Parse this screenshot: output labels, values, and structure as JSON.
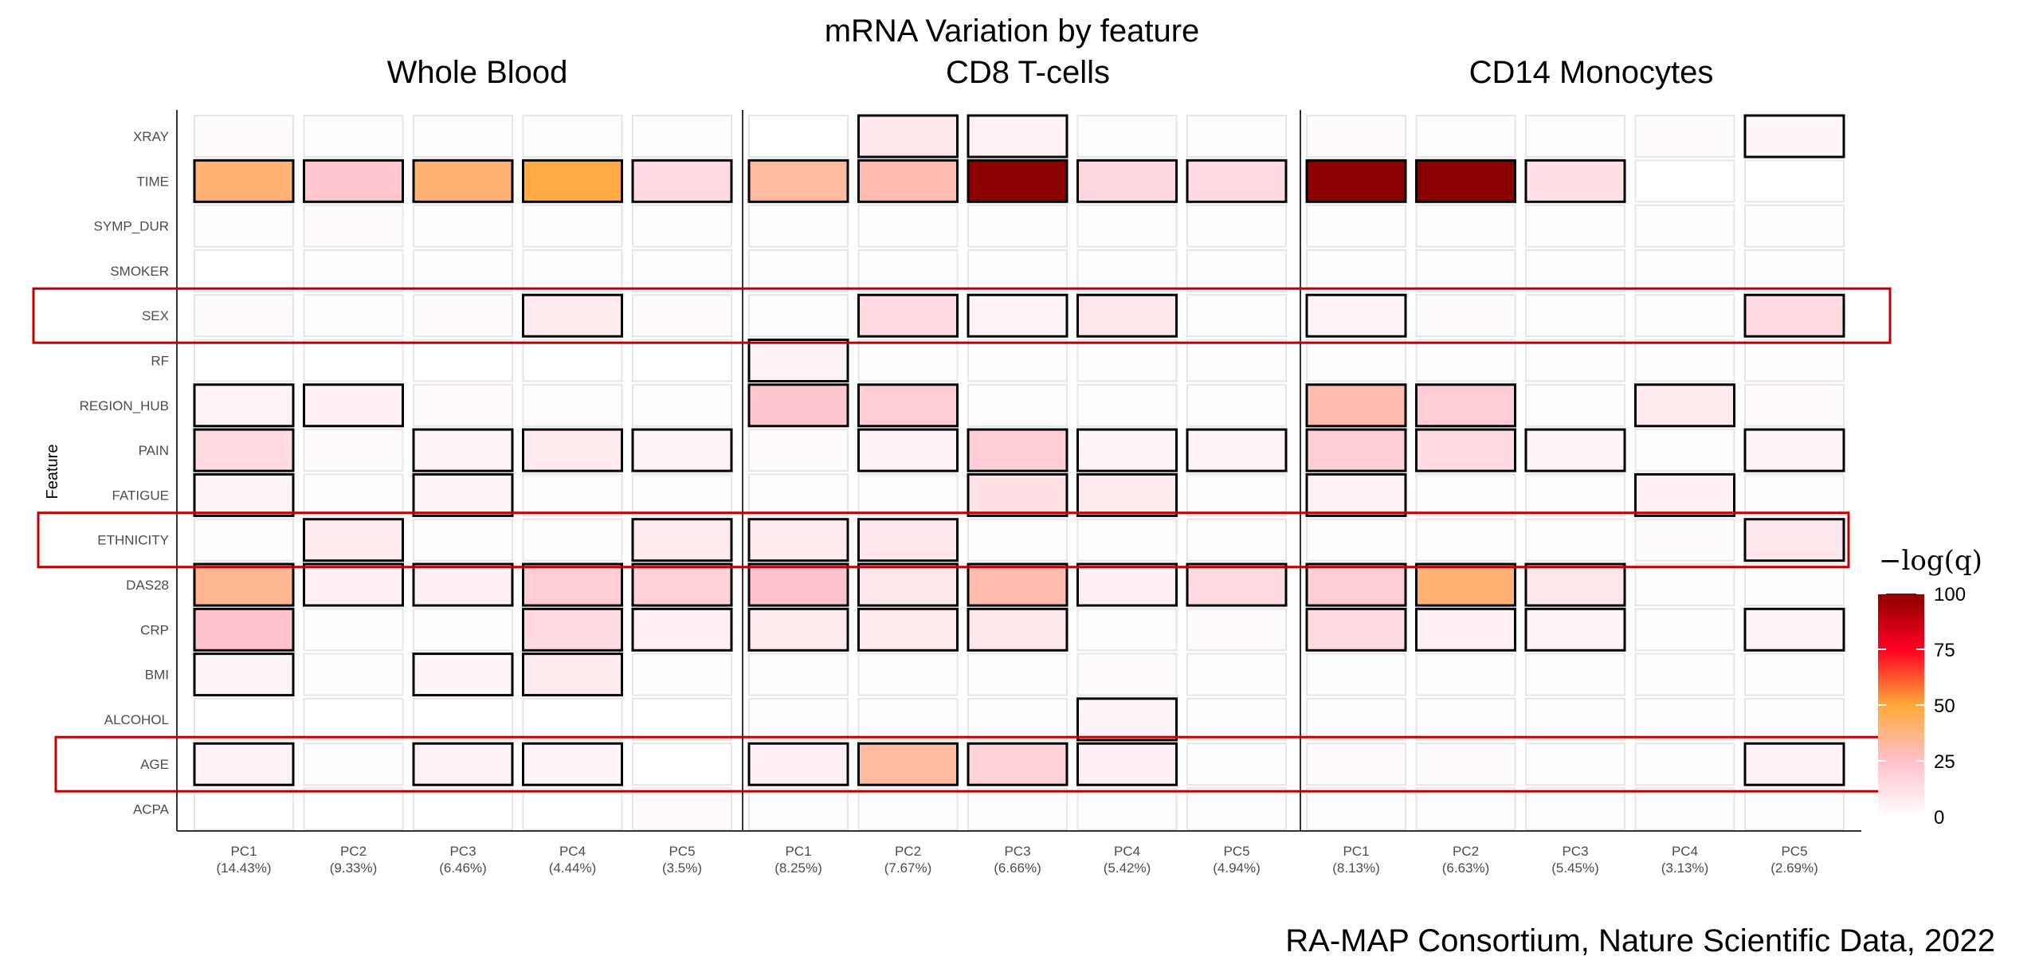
{
  "chart_data": {
    "type": "heatmap",
    "title": "mRNA Variation by feature",
    "ylabel": "Feature",
    "features": [
      "XRAY",
      "TIME",
      "SYMP_DUR",
      "SMOKER",
      "SEX",
      "RF",
      "REGION_HUB",
      "PAIN",
      "FATIGUE",
      "ETHNICITY",
      "DAS28",
      "CRP",
      "BMI",
      "ALCOHOL",
      "AGE",
      "ACPA"
    ],
    "highlighted_features": [
      "SEX",
      "ETHNICITY",
      "AGE"
    ],
    "panels": [
      {
        "name": "Whole Blood",
        "components": [
          {
            "label": "PC1",
            "variance": "(14.43%)"
          },
          {
            "label": "PC2",
            "variance": "(9.33%)"
          },
          {
            "label": "PC3",
            "variance": "(6.46%)"
          },
          {
            "label": "PC4",
            "variance": "(4.44%)"
          },
          {
            "label": "PC5",
            "variance": "(3.5%)"
          }
        ],
        "values": [
          [
            2,
            1,
            1,
            1,
            1
          ],
          [
            40,
            22,
            40,
            48,
            14
          ],
          [
            1,
            2,
            1,
            1,
            1
          ],
          [
            0,
            1,
            1,
            1,
            1
          ],
          [
            2,
            1,
            2,
            8,
            2
          ],
          [
            0,
            0,
            0,
            0,
            0
          ],
          [
            4,
            6,
            2,
            1,
            1
          ],
          [
            14,
            2,
            4,
            8,
            4
          ],
          [
            4,
            1,
            4,
            1,
            1
          ],
          [
            1,
            8,
            1,
            1,
            8
          ],
          [
            35,
            6,
            6,
            20,
            18
          ],
          [
            24,
            1,
            1,
            14,
            6
          ],
          [
            4,
            1,
            3,
            8,
            1
          ],
          [
            0,
            0,
            0,
            0,
            0
          ],
          [
            5,
            1,
            5,
            4,
            0
          ],
          [
            0,
            0,
            0,
            0,
            2
          ]
        ],
        "significant": [
          [
            0,
            0,
            0,
            0,
            0
          ],
          [
            1,
            1,
            1,
            1,
            1
          ],
          [
            0,
            0,
            0,
            0,
            0
          ],
          [
            0,
            0,
            0,
            0,
            0
          ],
          [
            0,
            0,
            0,
            1,
            0
          ],
          [
            0,
            0,
            0,
            0,
            0
          ],
          [
            1,
            1,
            0,
            0,
            0
          ],
          [
            1,
            0,
            1,
            1,
            1
          ],
          [
            1,
            0,
            1,
            0,
            0
          ],
          [
            0,
            1,
            0,
            0,
            1
          ],
          [
            1,
            1,
            1,
            1,
            1
          ],
          [
            1,
            0,
            0,
            1,
            1
          ],
          [
            1,
            0,
            1,
            1,
            0
          ],
          [
            0,
            0,
            0,
            0,
            0
          ],
          [
            1,
            0,
            1,
            1,
            0
          ],
          [
            0,
            0,
            0,
            0,
            0
          ]
        ]
      },
      {
        "name": "CD8 T-cells",
        "components": [
          {
            "label": "PC1",
            "variance": "(8.25%)"
          },
          {
            "label": "PC2",
            "variance": "(7.67%)"
          },
          {
            "label": "PC3",
            "variance": "(6.66%)"
          },
          {
            "label": "PC4",
            "variance": "(5.42%)"
          },
          {
            "label": "PC5",
            "variance": "(4.94%)"
          }
        ],
        "values": [
          [
            0,
            10,
            5,
            1,
            1
          ],
          [
            32,
            30,
            100,
            16,
            14
          ],
          [
            1,
            1,
            1,
            1,
            1
          ],
          [
            1,
            1,
            1,
            1,
            1
          ],
          [
            1,
            14,
            4,
            10,
            1
          ],
          [
            5,
            1,
            1,
            1,
            1
          ],
          [
            22,
            20,
            1,
            1,
            1
          ],
          [
            2,
            5,
            20,
            4,
            4
          ],
          [
            1,
            1,
            12,
            8,
            1
          ],
          [
            8,
            10,
            1,
            1,
            1
          ],
          [
            24,
            10,
            30,
            6,
            14
          ],
          [
            8,
            8,
            10,
            1,
            2
          ],
          [
            1,
            1,
            1,
            2,
            1
          ],
          [
            1,
            1,
            1,
            4,
            1
          ],
          [
            6,
            32,
            18,
            6,
            1
          ],
          [
            1,
            1,
            1,
            1,
            1
          ]
        ],
        "significant": [
          [
            0,
            1,
            1,
            0,
            0
          ],
          [
            1,
            1,
            1,
            1,
            1
          ],
          [
            0,
            0,
            0,
            0,
            0
          ],
          [
            0,
            0,
            0,
            0,
            0
          ],
          [
            0,
            1,
            1,
            1,
            0
          ],
          [
            1,
            0,
            0,
            0,
            0
          ],
          [
            1,
            1,
            0,
            0,
            0
          ],
          [
            0,
            1,
            1,
            1,
            1
          ],
          [
            0,
            0,
            1,
            1,
            0
          ],
          [
            1,
            1,
            0,
            0,
            0
          ],
          [
            1,
            1,
            1,
            1,
            1
          ],
          [
            1,
            1,
            1,
            0,
            0
          ],
          [
            0,
            0,
            0,
            0,
            0
          ],
          [
            0,
            0,
            0,
            1,
            0
          ],
          [
            1,
            1,
            1,
            1,
            0
          ],
          [
            0,
            0,
            0,
            0,
            0
          ]
        ]
      },
      {
        "name": "CD14 Monocytes",
        "components": [
          {
            "label": "PC1",
            "variance": "(8.13%)"
          },
          {
            "label": "PC2",
            "variance": "(6.63%)"
          },
          {
            "label": "PC3",
            "variance": "(5.45%)"
          },
          {
            "label": "PC4",
            "variance": "(3.13%)"
          },
          {
            "label": "PC5",
            "variance": "(2.69%)"
          }
        ],
        "values": [
          [
            2,
            1,
            1,
            2,
            3
          ],
          [
            100,
            100,
            12,
            0,
            0
          ],
          [
            1,
            1,
            1,
            1,
            1
          ],
          [
            1,
            1,
            1,
            1,
            1
          ],
          [
            4,
            2,
            1,
            1,
            14
          ],
          [
            1,
            1,
            1,
            1,
            1
          ],
          [
            30,
            20,
            1,
            8,
            2
          ],
          [
            20,
            14,
            4,
            1,
            4
          ],
          [
            5,
            1,
            1,
            6,
            1
          ],
          [
            1,
            1,
            1,
            2,
            10
          ],
          [
            20,
            40,
            10,
            1,
            1
          ],
          [
            14,
            6,
            4,
            1,
            4
          ],
          [
            1,
            1,
            1,
            1,
            1
          ],
          [
            1,
            1,
            1,
            1,
            1
          ],
          [
            2,
            2,
            1,
            1,
            5
          ],
          [
            1,
            1,
            1,
            1,
            1
          ]
        ],
        "significant": [
          [
            0,
            0,
            0,
            0,
            1
          ],
          [
            1,
            1,
            1,
            0,
            0
          ],
          [
            0,
            0,
            0,
            0,
            0
          ],
          [
            0,
            0,
            0,
            0,
            0
          ],
          [
            1,
            0,
            0,
            0,
            1
          ],
          [
            0,
            0,
            0,
            0,
            0
          ],
          [
            1,
            1,
            0,
            1,
            0
          ],
          [
            1,
            1,
            1,
            0,
            1
          ],
          [
            1,
            0,
            0,
            1,
            0
          ],
          [
            0,
            0,
            0,
            0,
            1
          ],
          [
            1,
            1,
            1,
            0,
            0
          ],
          [
            1,
            1,
            1,
            0,
            1
          ],
          [
            0,
            0,
            0,
            0,
            0
          ],
          [
            0,
            0,
            0,
            0,
            0
          ],
          [
            0,
            0,
            0,
            0,
            1
          ],
          [
            0,
            0,
            0,
            0,
            0
          ]
        ]
      }
    ],
    "legend": {
      "title": "−log(q)",
      "ticks": [
        100,
        75,
        50,
        25,
        0
      ],
      "range": [
        0,
        100
      ],
      "colors": [
        "#ffffff",
        "#ffc0cb",
        "#ffa93a",
        "#ff0022",
        "#8b0000"
      ]
    },
    "caption": "RA-MAP Consortium, Nature Scientific Data, 2022"
  },
  "colors": {
    "highlight_box": "#c00000",
    "tile_border": "#e6e6e6",
    "sig_border": "#000000",
    "axis_line": "#333333"
  }
}
